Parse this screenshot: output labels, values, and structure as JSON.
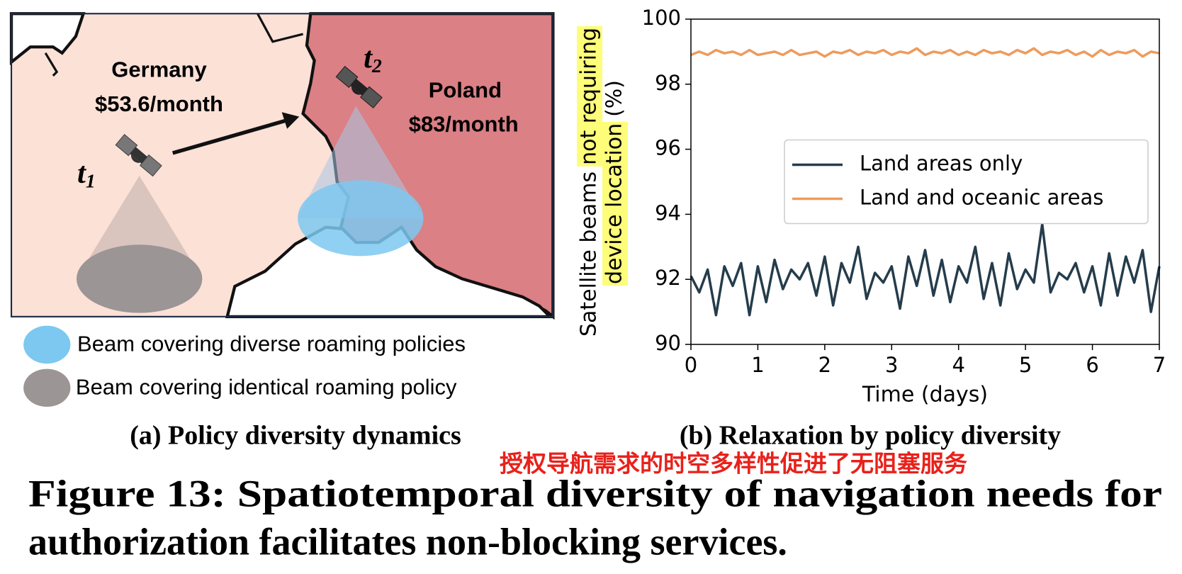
{
  "panel_a": {
    "germany": "Germany",
    "germany_price": "$53.6/month",
    "poland": "Poland",
    "poland_price": "$83/month",
    "t1": {
      "base": "t",
      "sub": "1"
    },
    "t2": {
      "base": "t",
      "sub": "2"
    },
    "legend": [
      "Beam covering diverse roaming policies",
      "Beam covering identical roaming policy"
    ],
    "caption": "(a) Policy diversity dynamics"
  },
  "chart_data": {
    "type": "line",
    "caption": "(b) Relaxation by policy diversity",
    "x_label": "Time (days)",
    "y_label": [
      [
        {
          "text": "Satellite beams",
          "highlight": false
        },
        {
          "text": "not requiring",
          "highlight": true
        }
      ],
      [
        {
          "text": "device location",
          "highlight": true
        },
        {
          "text": "(%)",
          "highlight": false
        }
      ]
    ],
    "highlight_color": "#fdfd7a",
    "xlim": [
      0,
      7
    ],
    "xticks": [
      0,
      1,
      2,
      3,
      4,
      5,
      6,
      7
    ],
    "ylim": [
      90,
      100
    ],
    "yticks": [
      90,
      92,
      94,
      96,
      98,
      100
    ],
    "grid": false,
    "legend": "center right",
    "x": [
      0,
      0.125,
      0.25,
      0.375,
      0.5,
      0.625,
      0.75,
      0.875,
      1,
      1.125,
      1.25,
      1.375,
      1.5,
      1.625,
      1.75,
      1.875,
      2,
      2.125,
      2.25,
      2.375,
      2.5,
      2.625,
      2.75,
      2.875,
      3,
      3.125,
      3.25,
      3.375,
      3.5,
      3.625,
      3.75,
      3.875,
      4,
      4.125,
      4.25,
      4.375,
      4.5,
      4.625,
      4.75,
      4.875,
      5,
      5.125,
      5.25,
      5.375,
      5.5,
      5.625,
      5.75,
      5.875,
      6,
      6.125,
      6.25,
      6.375,
      6.5,
      6.625,
      6.75,
      6.875,
      7
    ],
    "series": [
      {
        "name": "Land areas only",
        "color": "#253c4b",
        "values": [
          92.1,
          91.6,
          92.3,
          90.9,
          92.4,
          91.8,
          92.5,
          90.9,
          92.4,
          91.3,
          92.6,
          91.7,
          92.3,
          92.0,
          92.5,
          91.5,
          92.7,
          91.2,
          92.5,
          91.9,
          93.0,
          91.4,
          92.2,
          91.9,
          92.4,
          91.1,
          92.7,
          91.8,
          92.9,
          91.5,
          92.6,
          91.3,
          92.4,
          91.9,
          93.0,
          91.4,
          92.5,
          91.2,
          92.8,
          91.7,
          92.3,
          91.9,
          93.7,
          91.6,
          92.2,
          92.0,
          92.5,
          91.6,
          92.4,
          91.2,
          92.8,
          91.5,
          92.7,
          91.9,
          92.9,
          91.0,
          92.4
        ]
      },
      {
        "name": "Land and oceanic areas",
        "color": "#ee9b5c",
        "values": [
          98.9,
          99.0,
          98.9,
          99.05,
          98.95,
          99.0,
          98.9,
          99.05,
          98.9,
          98.95,
          99.0,
          98.9,
          99.05,
          98.9,
          98.95,
          99.0,
          98.85,
          99.0,
          98.95,
          99.05,
          98.9,
          99.0,
          98.95,
          99.05,
          98.9,
          99.0,
          98.95,
          99.1,
          98.9,
          99.0,
          98.95,
          99.05,
          98.9,
          99.0,
          98.9,
          99.05,
          98.95,
          99.0,
          98.9,
          99.05,
          98.95,
          99.1,
          98.9,
          99.0,
          98.95,
          99.05,
          98.9,
          99.0,
          98.85,
          99.05,
          98.9,
          99.0,
          98.95,
          99.05,
          98.85,
          99.0,
          98.95
        ]
      }
    ]
  },
  "annotation": "授权导航需求的时空多样性促进了无阻塞服务",
  "figure_caption": [
    "Figure 13: Spatiotemporal diversity of navigation needs for",
    "authorization facilitates non-blocking services."
  ]
}
